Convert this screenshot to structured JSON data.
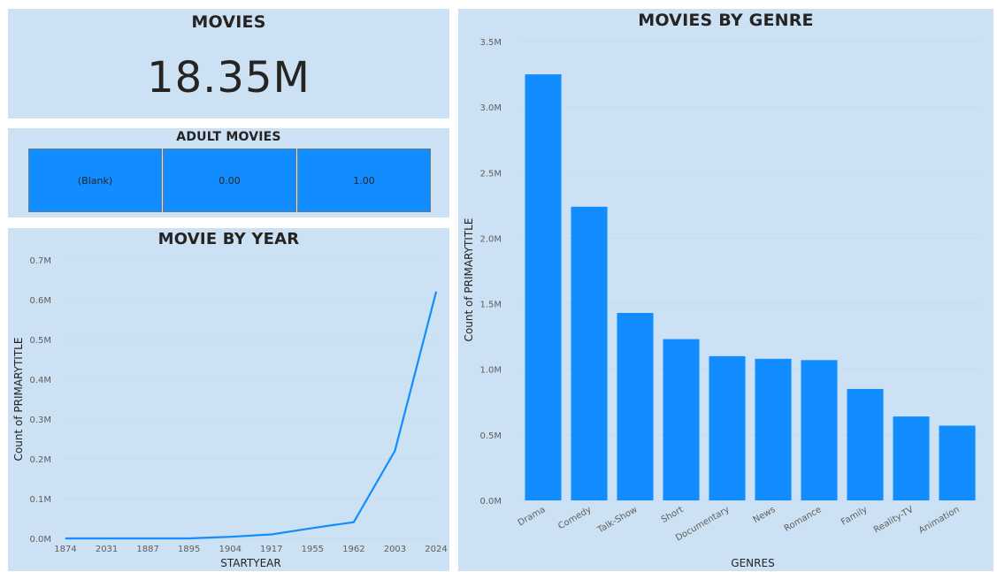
{
  "kpi": {
    "title": "MOVIES",
    "value": "18.35M"
  },
  "adult": {
    "title": "ADULT MOVIES",
    "cells": [
      "(Blank)",
      "0.00",
      "1.00"
    ]
  },
  "colors": {
    "panel_bg": "#cce1f4",
    "accent": "#118dff",
    "text": "#252423"
  },
  "chart_data": [
    {
      "type": "line",
      "title": "MOVIE BY YEAR",
      "xlabel": "STARTYEAR",
      "ylabel": "Count of PRIMARYTITLE",
      "categories": [
        "1874",
        "2031",
        "1887",
        "1895",
        "1904",
        "1917",
        "1955",
        "1962",
        "2003",
        "2024"
      ],
      "values": [
        0.0,
        0.0,
        0.0,
        0.0,
        0.004,
        0.01,
        0.026,
        0.041,
        0.22,
        0.62
      ],
      "ylim": [
        0,
        0.7
      ],
      "yticks": [
        "0.0M",
        "0.1M",
        "0.2M",
        "0.3M",
        "0.4M",
        "0.5M",
        "0.6M",
        "0.7M"
      ],
      "grid": true
    },
    {
      "type": "bar",
      "title": "MOVIES BY GENRE",
      "xlabel": "GENRES",
      "ylabel": "Count of PRIMARYTITLE",
      "categories": [
        "Drama",
        "Comedy",
        "Talk-Show",
        "Short",
        "Documentary",
        "News",
        "Romance",
        "Family",
        "Reality-TV",
        "Animation"
      ],
      "values": [
        3.25,
        2.24,
        1.43,
        1.23,
        1.1,
        1.08,
        1.07,
        0.85,
        0.64,
        0.57
      ],
      "ylim": [
        0,
        3.5
      ],
      "yticks": [
        "0.0M",
        "0.5M",
        "1.0M",
        "1.5M",
        "2.0M",
        "2.5M",
        "3.0M",
        "3.5M"
      ],
      "grid": true
    }
  ]
}
